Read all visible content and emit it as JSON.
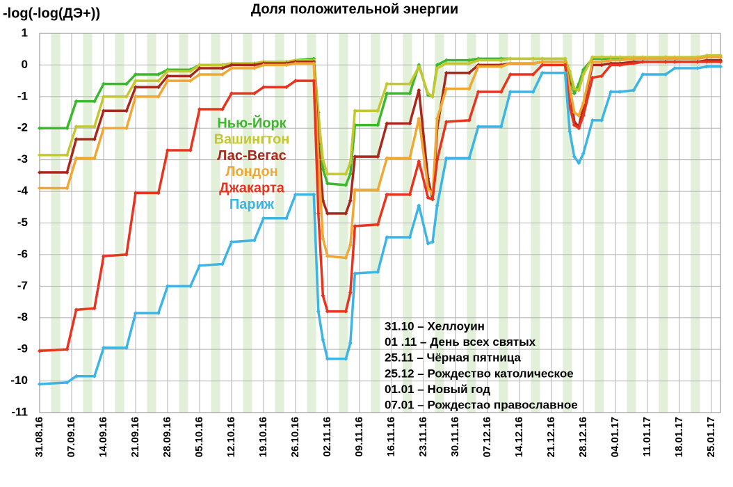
{
  "chart_data": {
    "type": "line",
    "title": "Доля положительной энергии",
    "y_label": "-log(-log(ДЭ+))",
    "x": [
      "31.08.16",
      "06.09.16",
      "08.09.16",
      "12.09.16",
      "14.09.16",
      "19.09.16",
      "21.09.16",
      "26.09.16",
      "28.09.16",
      "03.10.16",
      "05.10.16",
      "10.10.16",
      "12.10.16",
      "17.10.16",
      "19.10.16",
      "24.10.16",
      "26.10.16",
      "30.10.16",
      "31.10.16",
      "01.11.16",
      "02.11.16",
      "06.11.16",
      "07.11.16",
      "08.11.16",
      "13.11.16",
      "15.11.16",
      "20.11.16",
      "22.11.16",
      "24.11.16",
      "25.11.16",
      "26.11.16",
      "28.11.16",
      "03.12.16",
      "05.12.16",
      "10.12.16",
      "12.12.16",
      "17.12.16",
      "19.12.16",
      "24.12.16",
      "25.12.16",
      "26.12.16",
      "27.12.16",
      "28.12.16",
      "30.12.16",
      "01.01.17",
      "03.01.17",
      "05.01.17",
      "08.01.17",
      "10.01.17",
      "15.01.17",
      "17.01.17",
      "22.01.17",
      "24.01.17",
      "27.01.17"
    ],
    "series": [
      {
        "name": "Нью-Йорк",
        "color": "#3cb82c",
        "values": [
          -2,
          -2,
          -1.15,
          -1.15,
          -0.6,
          -0.6,
          -0.3,
          -0.3,
          -0.15,
          -0.15,
          0,
          0,
          0.05,
          0.05,
          0.1,
          0.1,
          0.15,
          0.2,
          -1.5,
          -3.3,
          -3.75,
          -3.8,
          -3.45,
          -1.9,
          -1.9,
          -0.9,
          -0.9,
          0,
          -0.95,
          -1,
          0,
          0.15,
          0.15,
          0.2,
          0.2,
          0.2,
          0.2,
          0.2,
          0.2,
          -0.3,
          -0.9,
          -0.6,
          -0.15,
          0.2,
          0.2,
          0.2,
          0.2,
          0.2,
          0.2,
          0.2,
          0.2,
          0.2,
          0.25,
          0.25
        ]
      },
      {
        "name": "Вашингтон",
        "color": "#c3c830",
        "values": [
          -2.85,
          -2.85,
          -1.95,
          -1.95,
          -1,
          -1,
          -0.5,
          -0.5,
          -0.2,
          -0.2,
          0,
          0,
          0.05,
          0.05,
          0.1,
          0.1,
          0.15,
          0.15,
          -1.6,
          -3,
          -3.45,
          -3.45,
          -3.1,
          -1.45,
          -1.45,
          -0.6,
          -0.6,
          -0.05,
          -0.9,
          -1,
          -0.1,
          0.05,
          0.05,
          0.15,
          0.15,
          0.2,
          0.2,
          0.2,
          0.2,
          -0.2,
          -0.75,
          -0.8,
          -0.3,
          0.25,
          0.25,
          0.25,
          0.25,
          0.25,
          0.25,
          0.25,
          0.25,
          0.25,
          0.3,
          0.3
        ]
      },
      {
        "name": "Лас-Вегас",
        "color": "#a8281c",
        "values": [
          -3.4,
          -3.4,
          -2.35,
          -2.35,
          -1.45,
          -1.45,
          -0.7,
          -0.7,
          -0.35,
          -0.35,
          -0.1,
          -0.1,
          0,
          0,
          0.05,
          0.05,
          0.1,
          0.1,
          -2.5,
          -4.3,
          -4.7,
          -4.7,
          -4.3,
          -2.9,
          -2.9,
          -1.85,
          -1.85,
          -0.8,
          -3.6,
          -4.25,
          -2,
          -0.25,
          -0.25,
          0,
          0,
          0.05,
          0.05,
          0.1,
          0.1,
          -0.6,
          -1.8,
          -1.95,
          -1.3,
          0,
          0,
          0.05,
          0.05,
          0.1,
          0.1,
          0.1,
          0.1,
          0.1,
          0.15,
          0.15
        ]
      },
      {
        "name": "Лондон",
        "color": "#f0a832",
        "values": [
          -3.9,
          -3.9,
          -2.95,
          -2.95,
          -2,
          -2,
          -1,
          -1,
          -0.5,
          -0.5,
          -0.3,
          -0.3,
          -0.1,
          -0.1,
          0,
          0,
          0.05,
          0.05,
          -3,
          -5.5,
          -6.05,
          -6.1,
          -5.7,
          -3.95,
          -3.95,
          -2.95,
          -2.95,
          -1.7,
          -3.9,
          -4.1,
          -1.7,
          -0.75,
          -0.75,
          -0.05,
          -0.05,
          0.05,
          0.05,
          0.1,
          0.1,
          -0.7,
          -1.5,
          -1.6,
          -1.2,
          0.1,
          0.1,
          0.15,
          0.15,
          0.2,
          0.2,
          0.2,
          0.2,
          0.2,
          0.25,
          0.25
        ]
      },
      {
        "name": "Джакарта",
        "color": "#e8341e",
        "values": [
          -9.05,
          -9,
          -7.75,
          -7.7,
          -6.05,
          -6,
          -4.05,
          -4.05,
          -2.7,
          -2.7,
          -1.4,
          -1.4,
          -0.9,
          -0.9,
          -0.7,
          -0.7,
          -0.5,
          -0.5,
          -4.7,
          -7.3,
          -7.8,
          -7.8,
          -7.2,
          -5.1,
          -5.05,
          -4.1,
          -4.1,
          -3.05,
          -4.2,
          -4.25,
          -3,
          -1.8,
          -1.75,
          -0.85,
          -0.85,
          -0.3,
          -0.3,
          0,
          0,
          -1.3,
          -1.9,
          -2,
          -1.6,
          -0.4,
          -0.35,
          0,
          0,
          0.05,
          0.1,
          0.1,
          0.1,
          0.1,
          0.1,
          0.1
        ]
      },
      {
        "name": "Париж",
        "color": "#3cb4e6",
        "values": [
          -10.1,
          -10.05,
          -9.85,
          -9.85,
          -8.95,
          -8.95,
          -7.85,
          -7.85,
          -7,
          -7,
          -6.35,
          -6.3,
          -5.6,
          -5.55,
          -4.85,
          -4.85,
          -4.1,
          -4.1,
          -7.8,
          -8.7,
          -9.3,
          -9.3,
          -8.8,
          -6.6,
          -6.55,
          -5.45,
          -5.45,
          -4.45,
          -5.65,
          -5.6,
          -4.45,
          -2.95,
          -2.95,
          -1.95,
          -1.95,
          -0.85,
          -0.85,
          -0.25,
          -0.25,
          -2.1,
          -2.9,
          -3.1,
          -2.8,
          -1.75,
          -1.75,
          -0.85,
          -0.85,
          -0.8,
          -0.3,
          -0.3,
          -0.1,
          -0.1,
          -0.05,
          -0.05
        ]
      }
    ],
    "xlim": [
      "31.08.16",
      "27.01.17"
    ],
    "xticks": [
      "31.08.16",
      "07.09.16",
      "14.09.16",
      "21.09.16",
      "28.09.16",
      "05.10.16",
      "12.10.16",
      "19.10.16",
      "26.10.16",
      "02.11.16",
      "09.11.16",
      "16.11.16",
      "23.11.16",
      "30.11.16",
      "07.12.16",
      "14.12.16",
      "21.12.16",
      "28.12.16",
      "04.01.17",
      "11.01.17",
      "18.01.17",
      "25.01.17"
    ],
    "ylim": [
      -11,
      1
    ],
    "yticks": [
      -11,
      -10,
      -9,
      -8,
      -7,
      -6,
      -5,
      -4,
      -3,
      -2,
      -1,
      0,
      1
    ],
    "grid": true,
    "weekend_shading": true,
    "weekend_color": "#e2efd9",
    "annotations": [
      "31.10 – Хеллоуин",
      "01 .11 – День всех святых",
      "25.11 – Чёрная пятница",
      "25.12 – Рождество католическое",
      "01.01 – Новый год",
      "07.01 – Рождестао православное"
    ]
  }
}
